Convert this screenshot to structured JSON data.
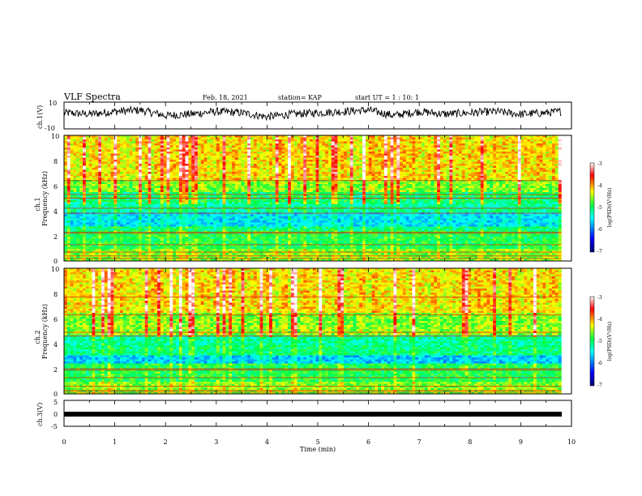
{
  "header": {
    "title": "VLF Spectra",
    "date": "Feb. 18, 2021",
    "station": "station= KAP",
    "start": "start UT =  1 : 10: 1"
  },
  "axes": {
    "ch1_label": "ch.1(V)",
    "ch1_ticks": [
      "10",
      "-10"
    ],
    "freq_ticks": [
      "0",
      "2",
      "4",
      "6",
      "8",
      "10"
    ],
    "spec1_label_a": "ch.1",
    "spec1_label_b": "Frequency (kHz)",
    "spec2_label_a": "ch.2",
    "spec2_label_b": "Frequency (kHz)",
    "ch3_label": "ch.3(V)",
    "ch3_ticks": [
      "5",
      "0",
      "-5"
    ],
    "x_ticks": [
      "0",
      "1",
      "2",
      "3",
      "4",
      "5",
      "6",
      "7",
      "8",
      "9",
      "10"
    ],
    "x_label": "Time (min)"
  },
  "colorbar": {
    "ticks": [
      "-3",
      "-4",
      "-5",
      "-6",
      "-7"
    ],
    "label": "log(PSD)(V²/Hz)",
    "colors": [
      "#00007f",
      "#0000ff",
      "#00ffff",
      "#00ff66",
      "#ffff00",
      "#ff0000",
      "#ffffff"
    ]
  },
  "chart_data": [
    {
      "type": "line",
      "panel": "ch1",
      "ylabel": "ch.1(V)",
      "xlim": [
        0,
        10
      ],
      "ylim": [
        -10,
        10
      ],
      "x": [
        0,
        0.5,
        1,
        1.5,
        2,
        2.5,
        3,
        3.5,
        4,
        4.5,
        5,
        5.5,
        6,
        6.5,
        7,
        7.5,
        8,
        8.5,
        9,
        9.5,
        9.8
      ],
      "values": [
        2,
        1,
        3,
        4,
        0,
        1,
        3,
        2,
        -1,
        1,
        2,
        3,
        4,
        0,
        3,
        1,
        2,
        3,
        1,
        2,
        3
      ]
    },
    {
      "type": "heatmap",
      "panel": "ch1 spectrogram",
      "ylabel": "Frequency (kHz)",
      "xlim": [
        0,
        10
      ],
      "ylim": [
        0,
        10
      ],
      "x_end": 9.8,
      "color_range": [
        -7,
        -3
      ]
    },
    {
      "type": "heatmap",
      "panel": "ch2 spectrogram",
      "ylabel": "Frequency (kHz)",
      "xlim": [
        0,
        10
      ],
      "ylim": [
        0,
        10
      ],
      "x_end": 9.8,
      "color_range": [
        -7,
        -3
      ]
    },
    {
      "type": "line",
      "panel": "ch3",
      "ylabel": "ch.3(V)",
      "xlabel": "Time (min)",
      "xlim": [
        0,
        10
      ],
      "ylim": [
        -5,
        5
      ],
      "x": [
        0,
        9.8
      ],
      "values": [
        0,
        0
      ]
    }
  ]
}
